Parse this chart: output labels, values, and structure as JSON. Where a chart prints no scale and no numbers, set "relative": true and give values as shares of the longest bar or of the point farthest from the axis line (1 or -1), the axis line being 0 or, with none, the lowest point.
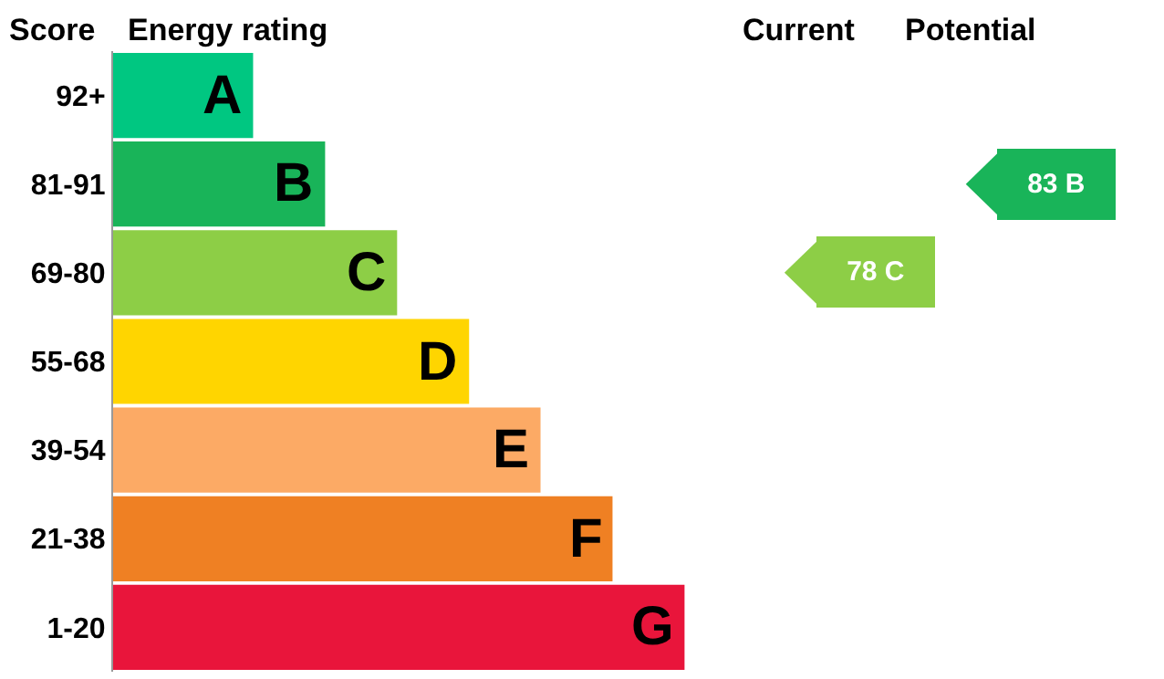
{
  "chart_data": {
    "type": "bar",
    "orientation": "horizontal",
    "relative": true,
    "xlabel": "Energy rating",
    "ylabel": "Score",
    "categories": [
      "92+",
      "81-91",
      "69-80",
      "55-68",
      "39-54",
      "21-38",
      "1-20"
    ],
    "values": [
      0.245,
      0.371,
      0.497,
      0.623,
      0.748,
      0.874,
      1
    ],
    "colors": [
      "#00c781",
      "#19b459",
      "#8dce46",
      "#ffd500",
      "#fcaa65",
      "#ef8023",
      "#e9153b"
    ],
    "annotations": [
      "Current",
      "Potential",
      "78 C",
      "83 B",
      {
        "text": "A",
        "x": 0.245,
        "y": "92+"
      },
      {
        "text": "B",
        "x": 0.371,
        "y": "81-91"
      },
      {
        "text": "C",
        "x": 0.497,
        "y": "69-80"
      },
      {
        "text": "D",
        "x": 0.623,
        "y": "55-68"
      },
      {
        "text": "E",
        "x": 0.748,
        "y": "39-54"
      },
      {
        "text": "F",
        "x": 0.874,
        "y": "21-38"
      },
      {
        "text": "G",
        "x": 1,
        "y": "1-20"
      }
    ],
    "grid": false,
    "legend": false
  }
}
